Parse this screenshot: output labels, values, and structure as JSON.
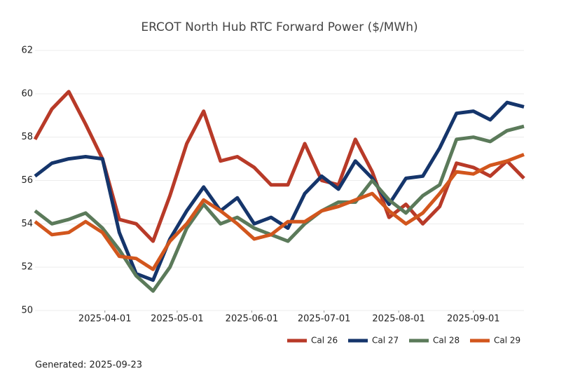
{
  "chart_data": {
    "type": "line",
    "title": "ERCOT North Hub RTC Forward Power ($/MWh)",
    "footnote": "Generated: 2025-09-23",
    "x": [
      "2025-03-03",
      "2025-03-10",
      "2025-03-17",
      "2025-03-24",
      "2025-03-31",
      "2025-04-07",
      "2025-04-14",
      "2025-04-21",
      "2025-04-28",
      "2025-05-05",
      "2025-05-12",
      "2025-05-19",
      "2025-05-26",
      "2025-06-02",
      "2025-06-09",
      "2025-06-16",
      "2025-06-23",
      "2025-06-30",
      "2025-07-07",
      "2025-07-14",
      "2025-07-21",
      "2025-07-28",
      "2025-08-04",
      "2025-08-11",
      "2025-08-18",
      "2025-08-25",
      "2025-09-01",
      "2025-09-08",
      "2025-09-15",
      "2025-09-22"
    ],
    "series": [
      {
        "name": "Cal 26",
        "color": "#b83a28",
        "values": [
          57.9,
          59.3,
          60.1,
          58.6,
          57.0,
          54.2,
          54.0,
          53.2,
          55.3,
          57.7,
          59.2,
          56.9,
          57.1,
          56.6,
          55.8,
          55.8,
          57.7,
          56.0,
          55.8,
          57.9,
          56.4,
          54.3,
          54.9,
          54.0,
          54.8,
          56.8,
          56.6,
          56.2,
          56.9,
          56.1
        ]
      },
      {
        "name": "Cal 27",
        "color": "#15356b",
        "values": [
          56.2,
          56.8,
          57.0,
          57.1,
          57.0,
          53.6,
          51.7,
          51.4,
          53.3,
          54.6,
          55.7,
          54.6,
          55.2,
          54.0,
          54.3,
          53.8,
          55.4,
          56.2,
          55.6,
          56.9,
          56.1,
          54.9,
          56.1,
          56.2,
          57.5,
          59.1,
          59.2,
          58.8,
          59.6,
          59.4
        ]
      },
      {
        "name": "Cal 28",
        "color": "#5b7a5a",
        "values": [
          54.6,
          54.0,
          54.2,
          54.5,
          53.8,
          52.8,
          51.6,
          50.9,
          52.0,
          53.8,
          54.9,
          54.0,
          54.3,
          53.8,
          53.5,
          53.2,
          54.0,
          54.6,
          55.0,
          55.0,
          56.0,
          55.1,
          54.5,
          55.3,
          55.8,
          57.9,
          58.0,
          57.8,
          58.3,
          58.5
        ]
      },
      {
        "name": "Cal 29",
        "color": "#d2561d",
        "values": [
          54.1,
          53.5,
          53.6,
          54.1,
          53.6,
          52.5,
          52.4,
          51.9,
          53.2,
          54.0,
          55.1,
          54.6,
          54.0,
          53.3,
          53.5,
          54.1,
          54.1,
          54.6,
          54.8,
          55.1,
          55.4,
          54.6,
          54.0,
          54.5,
          55.4,
          56.4,
          56.3,
          56.7,
          56.9,
          57.2
        ]
      }
    ],
    "xlim": [
      "2025-03-03",
      "2025-09-22"
    ],
    "xticks": [
      "2025-04-01",
      "2025-05-01",
      "2025-06-01",
      "2025-07-01",
      "2025-08-01",
      "2025-09-01"
    ],
    "ylim": [
      50,
      62
    ],
    "yticks": [
      50,
      52,
      54,
      56,
      58,
      60,
      62
    ],
    "grid": true,
    "legend": "bottom-right"
  }
}
